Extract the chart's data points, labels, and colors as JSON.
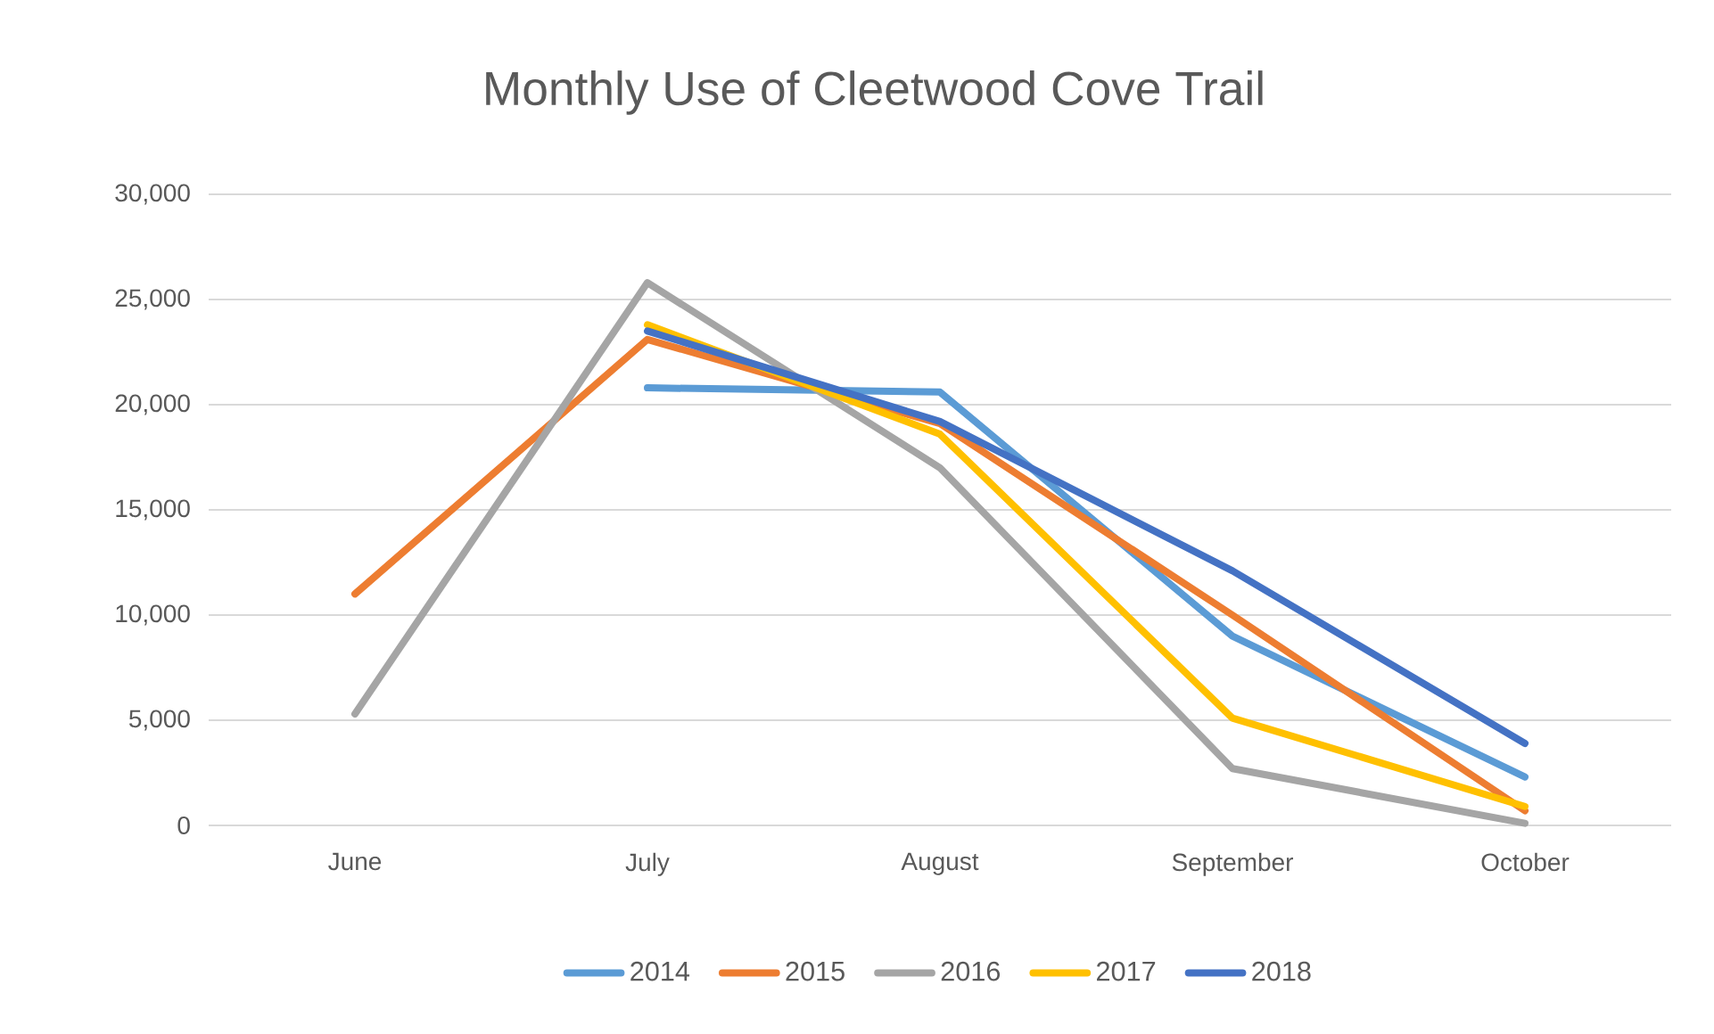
{
  "chart_data": {
    "type": "line",
    "title": "Monthly Use of Cleetwood Cove Trail",
    "categories": [
      "June",
      "July",
      "August",
      "September",
      "October"
    ],
    "series": [
      {
        "name": "2014",
        "color": "#5b9bd5",
        "values": [
          null,
          20800,
          20600,
          9000,
          2300
        ]
      },
      {
        "name": "2015",
        "color": "#ed7d31",
        "values": [
          11000,
          23100,
          19100,
          10000,
          700
        ]
      },
      {
        "name": "2016",
        "color": "#a5a5a5",
        "values": [
          5300,
          25800,
          17000,
          2700,
          100
        ]
      },
      {
        "name": "2017",
        "color": "#ffc000",
        "values": [
          null,
          23800,
          18600,
          5100,
          900
        ]
      },
      {
        "name": "2018",
        "color": "#4472c4",
        "values": [
          null,
          23500,
          19200,
          12100,
          3900
        ]
      }
    ],
    "ylim": [
      0,
      30000
    ],
    "yticks": [
      {
        "value": 0,
        "label": "0"
      },
      {
        "value": 5000,
        "label": "5,000"
      },
      {
        "value": 10000,
        "label": "10,000"
      },
      {
        "value": 15000,
        "label": "15,000"
      },
      {
        "value": 20000,
        "label": "20,000"
      },
      {
        "value": 25000,
        "label": "25,000"
      },
      {
        "value": 30000,
        "label": "30,000"
      }
    ],
    "grid": "y",
    "legend": "bottom",
    "marker": "none",
    "line_style": "solid"
  }
}
